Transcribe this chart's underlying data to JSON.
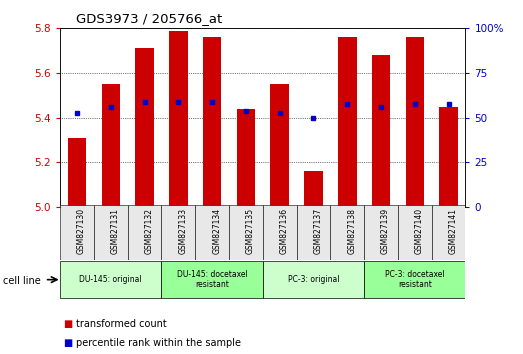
{
  "title": "GDS3973 / 205766_at",
  "samples": [
    "GSM827130",
    "GSM827131",
    "GSM827132",
    "GSM827133",
    "GSM827134",
    "GSM827135",
    "GSM827136",
    "GSM827137",
    "GSM827138",
    "GSM827139",
    "GSM827140",
    "GSM827141"
  ],
  "red_values": [
    5.31,
    5.55,
    5.71,
    5.79,
    5.76,
    5.44,
    5.55,
    5.16,
    5.76,
    5.68,
    5.76,
    5.45
  ],
  "blue_values": [
    5.42,
    5.45,
    5.47,
    5.47,
    5.47,
    5.43,
    5.42,
    5.4,
    5.46,
    5.45,
    5.46,
    5.46
  ],
  "ylim_left": [
    5.0,
    5.8
  ],
  "ylim_right": [
    0,
    100
  ],
  "yticks_left": [
    5.0,
    5.2,
    5.4,
    5.6,
    5.8
  ],
  "yticks_right": [
    0,
    25,
    50,
    75,
    100
  ],
  "ytick_labels_right": [
    "0",
    "25",
    "50",
    "75",
    "100%"
  ],
  "red_color": "#cc0000",
  "blue_color": "#0000cc",
  "bar_base": 5.0,
  "cell_groups": [
    {
      "label": "DU-145: original",
      "start": 0,
      "end": 2,
      "color": "#ccffcc"
    },
    {
      "label": "DU-145: docetaxel\nresistant",
      "start": 3,
      "end": 5,
      "color": "#99ff99"
    },
    {
      "label": "PC-3: original",
      "start": 6,
      "end": 8,
      "color": "#ccffcc"
    },
    {
      "label": "PC-3: docetaxel\nresistant",
      "start": 9,
      "end": 11,
      "color": "#99ff99"
    }
  ],
  "cell_line_label": "cell line",
  "legend_red": "transformed count",
  "legend_blue": "percentile rank within the sample",
  "tick_color_left": "#cc0000",
  "tick_color_right": "#0000cc",
  "bg_color": "#ffffff"
}
